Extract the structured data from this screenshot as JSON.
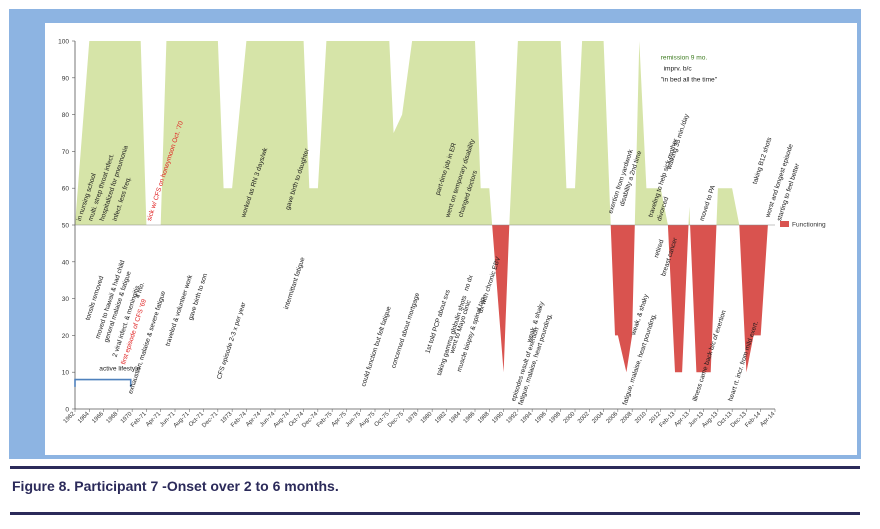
{
  "caption": "Figure 8. Participant 7 -Onset over 2 to 6 months.",
  "chart_data": {
    "type": "area",
    "ylim": [
      0,
      100
    ],
    "yticks": [
      0,
      10,
      20,
      30,
      40,
      50,
      60,
      70,
      80,
      90,
      100
    ],
    "x_tick_labels": [
      "1962",
      "1964",
      "1966",
      "1968",
      "1970",
      "Feb-71",
      "Apr-71",
      "Jun-71",
      "Aug-71",
      "Oct-71",
      "Dec-71",
      "1973",
      "Feb-74",
      "Apr-74",
      "Jun-74",
      "Aug-74",
      "Oct-74",
      "Dec-74",
      "Feb-75",
      "Apr-75",
      "Jun-75",
      "Aug-75",
      "Oct-75",
      "Dec-75",
      "1978",
      "1980",
      "1982",
      "1984",
      "1986",
      "1988",
      "1990",
      "1992",
      "1994",
      "1996",
      "1998",
      "2000",
      "2002",
      "2004",
      "2006",
      "2008",
      "2010",
      "2012",
      "Feb-13",
      "Apr-13",
      "Jun-13",
      "Aug-13",
      "Oct-13",
      "Dec-13",
      "Feb-14",
      "Apr-14"
    ],
    "baseline": 50,
    "legend": {
      "label": "Functioning",
      "position": "right"
    },
    "series": [
      {
        "x": [
          0,
          1,
          2,
          3,
          4,
          4.6,
          5,
          6,
          6.4,
          7,
          8,
          9,
          10,
          10.4,
          11,
          12,
          12.3,
          13,
          14,
          15,
          16,
          16.4,
          17,
          17.6,
          18,
          19,
          20,
          21,
          22,
          22.3,
          22.9,
          23.6,
          24,
          25,
          26,
          27,
          28,
          28.4,
          29,
          30,
          30.4,
          31,
          32,
          33,
          34,
          34.4,
          35,
          35.5,
          36,
          37,
          37.5,
          37.8,
          38,
          38.6,
          39,
          39.5,
          40,
          40.3,
          40.6,
          41,
          41.5,
          42,
          42.5,
          43,
          43.5,
          44,
          44.5,
          45,
          45.5,
          46,
          46.5,
          47,
          47.5,
          48,
          48.5,
          49
        ],
        "values": [
          50,
          100,
          100,
          100,
          100,
          100,
          50,
          50,
          100,
          100,
          100,
          100,
          100,
          60,
          60,
          100,
          100,
          100,
          100,
          100,
          100,
          60,
          60,
          100,
          100,
          100,
          100,
          100,
          100,
          75,
          80,
          100,
          100,
          100,
          100,
          100,
          100,
          60,
          60,
          10,
          50,
          100,
          100,
          100,
          100,
          60,
          60,
          100,
          100,
          100,
          50,
          20,
          20,
          10,
          20,
          100,
          60,
          60,
          60,
          60,
          50,
          10,
          10,
          55,
          10,
          10,
          10,
          60,
          60,
          60,
          50,
          10,
          20,
          20,
          50,
          50
        ]
      }
    ],
    "annotations": [
      {
        "text": "in nursing school",
        "x": 0.4,
        "y": 51,
        "color": "black"
      },
      {
        "text": "tonsils removed",
        "x": 1.0,
        "y": 24,
        "color": "black"
      },
      {
        "text": "multi. strep throat infect.",
        "x": 1.2,
        "y": 51,
        "color": "black"
      },
      {
        "text": "moved to hawaii & had child",
        "x": 1.7,
        "y": 19,
        "color": "black"
      },
      {
        "text": "hospitalized for pneumonia",
        "x": 2.0,
        "y": 51,
        "color": "black"
      },
      {
        "text": "general malaise & fatigue",
        "x": 2.3,
        "y": 18,
        "color": "black"
      },
      {
        "text": "infect. less freq.",
        "x": 2.9,
        "y": 51,
        "color": "black"
      },
      {
        "text": "2 viral infect. & meningitis",
        "x": 2.9,
        "y": 14,
        "color": "black"
      },
      {
        "text": "first episode of CFS '69",
        "x": 3.5,
        "y": 12,
        "color": "red"
      },
      {
        "text": "exhaustion, malaise & severe fatigue",
        "x": 4.0,
        "y": 4,
        "color": "black"
      },
      {
        "text": "4 mo.",
        "x": 4.5,
        "y": 30,
        "color": "black"
      },
      {
        "text": "sick w/ CFS on honeymoon Oct. '70",
        "x": 5.3,
        "y": 51,
        "color": "red"
      },
      {
        "text": "traveled & volunteer work",
        "x": 6.6,
        "y": 17,
        "color": "black"
      },
      {
        "text": "gave birth to son",
        "x": 8.2,
        "y": 24,
        "color": "black"
      },
      {
        "text": "CFS episode 2-3 x per year",
        "x": 10.2,
        "y": 8,
        "color": "black"
      },
      {
        "text": "worked as RN 3 days/wk",
        "x": 11.9,
        "y": 52,
        "color": "black"
      },
      {
        "text": "gave birth to daughter",
        "x": 15.0,
        "y": 54,
        "color": "black"
      },
      {
        "text": "intermittant fatigue",
        "x": 14.9,
        "y": 27,
        "color": "black"
      },
      {
        "text": "could function but felt fatigue",
        "x": 20.3,
        "y": 6,
        "color": "black"
      },
      {
        "text": "concerned about mortgage",
        "x": 22.4,
        "y": 11,
        "color": "black"
      },
      {
        "text": "1st told PCP about sxs",
        "x": 24.8,
        "y": 15,
        "color": "black"
      },
      {
        "text": "part-time job in ER",
        "x": 25.5,
        "y": 58,
        "color": "black"
      },
      {
        "text": "taking gamma globulin shots",
        "x": 25.6,
        "y": 9,
        "color": "black"
      },
      {
        "text": "went on temporary disability",
        "x": 26.2,
        "y": 52,
        "color": "black"
      },
      {
        "text": "went to Mayo clinic",
        "x": 26.5,
        "y": 15,
        "color": "black"
      },
      {
        "text": "muscle biopsy & spinal tap",
        "x": 27.0,
        "y": 10,
        "color": "black"
      },
      {
        "text": "changed doctors",
        "x": 27.1,
        "y": 52,
        "color": "black"
      },
      {
        "text": "no dx",
        "x": 27.5,
        "y": 32,
        "color": "black"
      },
      {
        "text": "dx with chronic EBV",
        "x": 28.5,
        "y": 26,
        "color": "black"
      },
      {
        "text": "episodes result of exertion",
        "x": 30.8,
        "y": 2,
        "color": "black"
      },
      {
        "text": "fatigue, malaise, heart pounding,",
        "x": 31.3,
        "y": 1,
        "color": "black"
      },
      {
        "text": "weak, & shaky",
        "x": 31.9,
        "y": 18,
        "color": "black"
      },
      {
        "text": "exertion from yardwork",
        "x": 37.6,
        "y": 53,
        "color": "black"
      },
      {
        "text": "disability a 2nd time",
        "x": 38.4,
        "y": 55,
        "color": "black"
      },
      {
        "text": "fatigue, malaise, heart pounding,",
        "x": 38.6,
        "y": 1,
        "color": "black"
      },
      {
        "text": "weak, & shaky",
        "x": 39.2,
        "y": 20,
        "color": "black"
      },
      {
        "text": "remission 9 mo.",
        "x": 41.0,
        "y": 95,
        "color": "green",
        "rotate": false
      },
      {
        "text": "imprv. b/c",
        "x": 41.2,
        "y": 92,
        "color": "black",
        "rotate": false
      },
      {
        "text": "\"in bed all the time\"",
        "x": 41.0,
        "y": 89,
        "color": "black",
        "rotate": false
      },
      {
        "text": "walking 35 min./day",
        "x": 41.7,
        "y": 65,
        "color": "black"
      },
      {
        "text": "retired",
        "x": 40.8,
        "y": 41,
        "color": "black"
      },
      {
        "text": "breast cancer",
        "x": 41.3,
        "y": 36,
        "color": "black"
      },
      {
        "text": "traveling to help sick mother",
        "x": 40.4,
        "y": 52,
        "color": "black"
      },
      {
        "text": "divorced",
        "x": 41.0,
        "y": 51,
        "color": "black"
      },
      {
        "text": "moved to PA",
        "x": 44.0,
        "y": 51,
        "color": "black"
      },
      {
        "text": "illness came back b/c of exertion",
        "x": 43.5,
        "y": 2,
        "color": "black"
      },
      {
        "text": "heart rt. incr. from mild exert.",
        "x": 46.0,
        "y": 2,
        "color": "black"
      },
      {
        "text": "taking B12 shots",
        "x": 47.7,
        "y": 61,
        "color": "black"
      },
      {
        "text": "worst and longest episode",
        "x": 48.6,
        "y": 52,
        "color": "black"
      },
      {
        "text": "starting to feel better",
        "x": 49.4,
        "y": 51,
        "color": "black"
      },
      {
        "text": "active lifestyle",
        "x": 1.7,
        "y": 10.5,
        "color": "black",
        "rotate": false
      }
    ]
  },
  "colors": {
    "above": "#d6e4a8",
    "below": "#d9534f",
    "legend_swatch": "#d9534f",
    "frame": "#8db4e2",
    "bracket": "#4f81bd",
    "caption": "#2b2a5a"
  }
}
